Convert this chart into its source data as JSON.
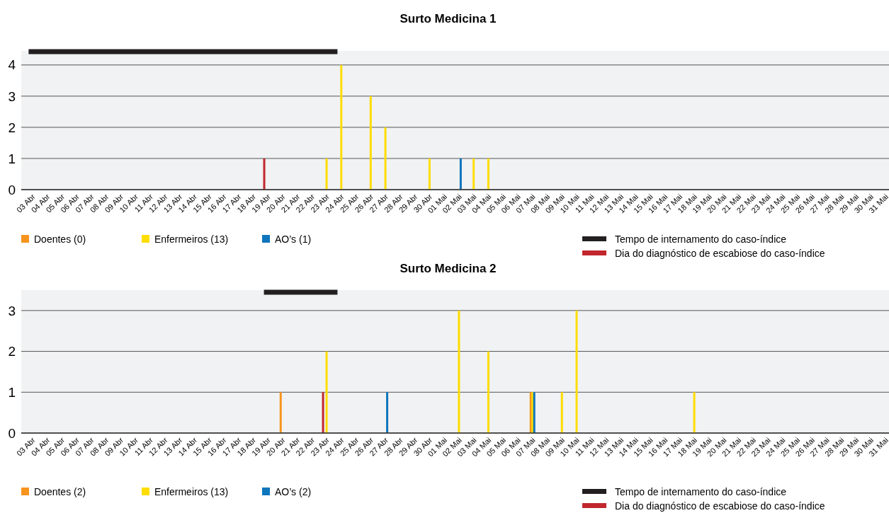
{
  "chart_data": [
    {
      "type": "bar",
      "title": "Surto Medicina 1",
      "categories": [
        "03 Abr",
        "04 Abr",
        "05 Abr",
        "06 Abr",
        "07 Abr",
        "08 Abr",
        "09 Abr",
        "10 Abr",
        "11 Abr",
        "12 Abr",
        "13 Abr",
        "14 Abr",
        "15 Abr",
        "16 Abr",
        "17 Abr",
        "18 Abr",
        "19 Abr",
        "20 Abr",
        "21 Abr",
        "22 Abr",
        "23 Abr",
        "24 Abr",
        "25 Abr",
        "26 Abr",
        "27 Abr",
        "28 Abr",
        "29 Abr",
        "30 Abr",
        "01 Mai",
        "02 Mai",
        "03 Mai",
        "04 Mai",
        "05 Mai",
        "06 Mai",
        "07 Mai",
        "08 Mai",
        "09 Mai",
        "10 Mai",
        "11 Mai",
        "12 Mai",
        "13 Mai",
        "14 Mai",
        "15 Mai",
        "16 Mai",
        "17 Mai",
        "18 Mai",
        "19 Mai",
        "20 Mai",
        "21 Mai",
        "22 Mai",
        "23 Mai",
        "24 Mai",
        "25 Mai",
        "26 Mai",
        "27 Mai",
        "28 Mai",
        "29 Mai",
        "30 Mai",
        "31 Mai"
      ],
      "series": [
        {
          "type": "line",
          "name": "Tempo de internamento do caso-índice",
          "color": "#231f20",
          "values": [
            4.43,
            4.43,
            4.43,
            4.43,
            4.43,
            4.43,
            4.43,
            4.43,
            4.43,
            4.43,
            4.43,
            4.43,
            4.43,
            4.43,
            4.43,
            4.43,
            4.43,
            4.43,
            4.43,
            4.43,
            4.43,
            4.43,
            null,
            null,
            null,
            null,
            null,
            null,
            null,
            null,
            null,
            null,
            null,
            null,
            null,
            null,
            null,
            null,
            null,
            null,
            null,
            null,
            null,
            null,
            null,
            null,
            null,
            null,
            null,
            null,
            null,
            null,
            null,
            null,
            null,
            null,
            null,
            null,
            null
          ]
        },
        {
          "name": "Dia do diagnóstico de escabiose do caso-índice",
          "color": "#c1272d",
          "values": [
            0,
            0,
            0,
            0,
            0,
            0,
            0,
            0,
            0,
            0,
            0,
            0,
            0,
            0,
            0,
            0,
            1,
            0,
            0,
            0,
            0,
            0,
            0,
            0,
            0,
            0,
            0,
            0,
            0,
            0,
            0,
            0,
            0,
            0,
            0,
            0,
            0,
            0,
            0,
            0,
            0,
            0,
            0,
            0,
            0,
            0,
            0,
            0,
            0,
            0,
            0,
            0,
            0,
            0,
            0,
            0,
            0,
            0,
            0
          ]
        },
        {
          "name": "Doentes (0)",
          "color": "#f7941d",
          "values": [
            0,
            0,
            0,
            0,
            0,
            0,
            0,
            0,
            0,
            0,
            0,
            0,
            0,
            0,
            0,
            0,
            0,
            0,
            0,
            0,
            0,
            0,
            0,
            0,
            0,
            0,
            0,
            0,
            0,
            0,
            0,
            0,
            0,
            0,
            0,
            0,
            0,
            0,
            0,
            0,
            0,
            0,
            0,
            0,
            0,
            0,
            0,
            0,
            0,
            0,
            0,
            0,
            0,
            0,
            0,
            0,
            0,
            0,
            0
          ]
        },
        {
          "name": "Enfermeiros (13)",
          "color": "#ffdd00",
          "values": [
            0,
            0,
            0,
            0,
            0,
            0,
            0,
            0,
            0,
            0,
            0,
            0,
            0,
            0,
            0,
            0,
            0,
            0,
            0,
            0,
            1,
            4,
            0,
            3,
            2,
            0,
            0,
            1,
            0,
            0,
            1,
            1,
            0,
            0,
            0,
            0,
            0,
            0,
            0,
            0,
            0,
            0,
            0,
            0,
            0,
            0,
            0,
            0,
            0,
            0,
            0,
            0,
            0,
            0,
            0,
            0,
            0,
            0,
            0
          ]
        },
        {
          "name": "AO’s (1)",
          "color": "#0f75bc",
          "values": [
            0,
            0,
            0,
            0,
            0,
            0,
            0,
            0,
            0,
            0,
            0,
            0,
            0,
            0,
            0,
            0,
            0,
            0,
            0,
            0,
            0,
            0,
            0,
            0,
            0,
            0,
            0,
            0,
            0,
            1,
            0,
            0,
            0,
            0,
            0,
            0,
            0,
            0,
            0,
            0,
            0,
            0,
            0,
            0,
            0,
            0,
            0,
            0,
            0,
            0,
            0,
            0,
            0,
            0,
            0,
            0,
            0,
            0,
            0
          ]
        }
      ],
      "ylim": [
        0,
        4.45
      ],
      "yticks": [
        0,
        1,
        2,
        3,
        4
      ],
      "grid": "y",
      "legend": "bottom"
    },
    {
      "type": "bar",
      "title": "Surto Medicina 2",
      "categories": [
        "03 Abr",
        "04 Abr",
        "05 Abr",
        "06 Abr",
        "07 Abr",
        "08 Abr",
        "09 Abr",
        "10 Abr",
        "11 Abr",
        "12 Abr",
        "13 Abr",
        "14 Abr",
        "15 Abr",
        "16 Abr",
        "17 Abr",
        "18 Abr",
        "19 Abr",
        "20 Abr",
        "21 Abr",
        "22 Abr",
        "23 Abr",
        "24 Abr",
        "25 Abr",
        "26 Abr",
        "27 Abr",
        "28 Abr",
        "29 Abr",
        "30 Abr",
        "01 Mai",
        "02 Mai",
        "03 Mai",
        "04 Mai",
        "05 Mai",
        "06 Mai",
        "07 Mai",
        "08 Mai",
        "09 Mai",
        "10 Mai",
        "11 Mai",
        "12 Mai",
        "13 Mai",
        "14 Mai",
        "15 Mai",
        "16 Mai",
        "17 Mai",
        "18 Mai",
        "19 Mai",
        "20 Mai",
        "21 Mai",
        "22 Mai",
        "23 Mai",
        "24 Mai",
        "25 Mai",
        "26 Mai",
        "27 Mai",
        "28 Mai",
        "29 Mai",
        "30 Mai",
        "31 Mai"
      ],
      "series": [
        {
          "type": "line",
          "name": "Tempo de internamento do caso-índice",
          "color": "#231f20",
          "values": [
            null,
            null,
            null,
            null,
            null,
            null,
            null,
            null,
            null,
            null,
            null,
            null,
            null,
            null,
            null,
            null,
            3.45,
            3.45,
            3.45,
            3.45,
            3.45,
            3.45,
            null,
            null,
            null,
            null,
            null,
            null,
            null,
            null,
            null,
            null,
            null,
            null,
            null,
            null,
            null,
            null,
            null,
            null,
            null,
            null,
            null,
            null,
            null,
            null,
            null,
            null,
            null,
            null,
            null,
            null,
            null,
            null,
            null,
            null,
            null,
            null,
            null
          ]
        },
        {
          "name": "Dia do diagnóstico de escabiose do caso-índice",
          "color": "#c1272d",
          "values": [
            0,
            0,
            0,
            0,
            0,
            0,
            0,
            0,
            0,
            0,
            0,
            0,
            0,
            0,
            0,
            0,
            0,
            0,
            0,
            0,
            1,
            0,
            0,
            0,
            0,
            0,
            0,
            0,
            0,
            0,
            0,
            0,
            0,
            0,
            0,
            0,
            0,
            0,
            0,
            0,
            0,
            0,
            0,
            0,
            0,
            0,
            0,
            0,
            0,
            0,
            0,
            0,
            0,
            0,
            0,
            0,
            0,
            0,
            0
          ]
        },
        {
          "name": "Doentes (2)",
          "color": "#f7941d",
          "values": [
            0,
            0,
            0,
            0,
            0,
            0,
            0,
            0,
            0,
            0,
            0,
            0,
            0,
            0,
            0,
            0,
            0,
            1,
            0,
            0,
            0,
            0,
            0,
            0,
            0,
            0,
            0,
            0,
            0,
            0,
            0,
            0,
            0,
            0,
            1,
            0,
            0,
            0,
            0,
            0,
            0,
            0,
            0,
            0,
            0,
            0,
            0,
            0,
            0,
            0,
            0,
            0,
            0,
            0,
            0,
            0,
            0,
            0,
            0
          ]
        },
        {
          "name": "Enfermeiros (13)",
          "color": "#ffdd00",
          "values": [
            0,
            0,
            0,
            0,
            0,
            0,
            0,
            0,
            0,
            0,
            0,
            0,
            0,
            0,
            0,
            0,
            0,
            0,
            0,
            0,
            2,
            0,
            0,
            0,
            0,
            0,
            0,
            0,
            0,
            3,
            0,
            2,
            0,
            0,
            1,
            0,
            1,
            3,
            0,
            0,
            0,
            0,
            0,
            0,
            0,
            1,
            0,
            0,
            0,
            0,
            0,
            0,
            0,
            0,
            0,
            0,
            0,
            0,
            0
          ]
        },
        {
          "name": "AO’s (2)",
          "color": "#0f75bc",
          "values": [
            0,
            0,
            0,
            0,
            0,
            0,
            0,
            0,
            0,
            0,
            0,
            0,
            0,
            0,
            0,
            0,
            0,
            0,
            0,
            0,
            0,
            0,
            0,
            0,
            1,
            0,
            0,
            0,
            0,
            0,
            0,
            0,
            0,
            0,
            1,
            0,
            0,
            0,
            0,
            0,
            0,
            0,
            0,
            0,
            0,
            0,
            0,
            0,
            0,
            0,
            0,
            0,
            0,
            0,
            0,
            0,
            0,
            0,
            0
          ]
        }
      ],
      "ylim": [
        0,
        3.5
      ],
      "yticks": [
        0,
        1,
        2,
        3
      ],
      "grid": "y",
      "legend": "bottom"
    }
  ]
}
